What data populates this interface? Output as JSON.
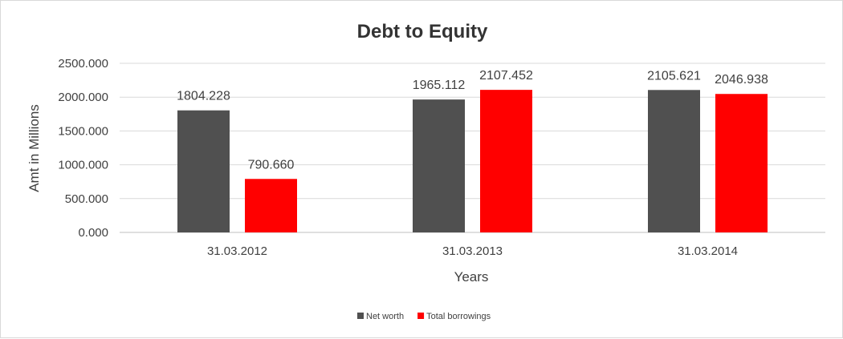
{
  "chart_data": {
    "type": "bar",
    "title": "Debt to Equity",
    "xlabel": "Years",
    "ylabel": "Amt in Millions",
    "categories": [
      "31.03.2012",
      "31.03.2013",
      "31.03.2014"
    ],
    "series": [
      {
        "name": "Net worth",
        "color": "#505050",
        "values": [
          1804.228,
          1965.112,
          2105.621
        ],
        "labels": [
          "1804.228",
          "1965.112",
          "2105.621"
        ]
      },
      {
        "name": "Total borrowings",
        "color": "#ff0000",
        "values": [
          790.66,
          2107.452,
          2046.938
        ],
        "labels": [
          "790.660",
          "2107.452",
          "2046.938"
        ]
      }
    ],
    "ylim": [
      0,
      2500
    ],
    "yticks": [
      0,
      500,
      1000,
      1500,
      2000,
      2500
    ],
    "ytick_labels": [
      "0.000",
      "500.000",
      "1000.000",
      "1500.000",
      "2000.000",
      "2500.000"
    ],
    "grid": true,
    "legend_position": "bottom"
  }
}
